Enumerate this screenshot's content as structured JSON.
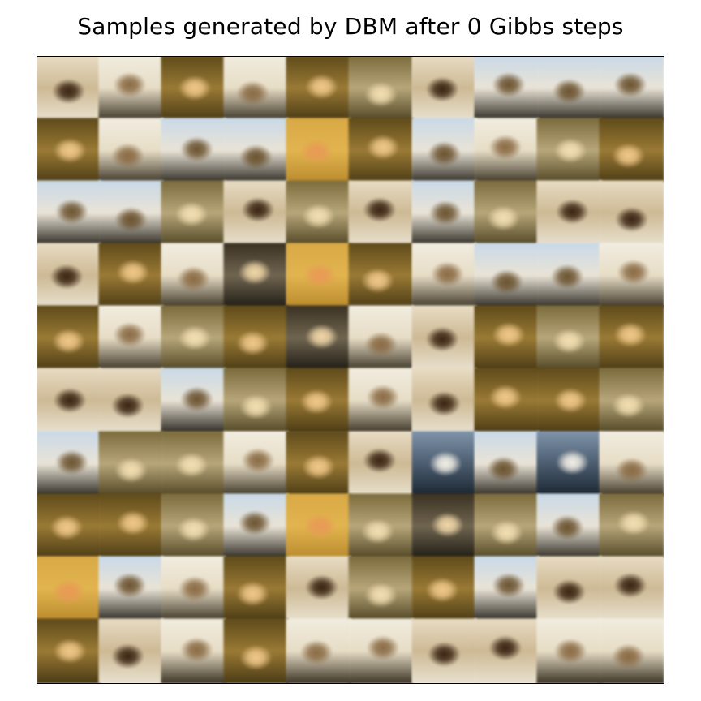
{
  "title": "Samples generated by DBM after 0 Gibbs steps",
  "grid": {
    "rows": 10,
    "cols": 10
  },
  "palettes": {
    "sky": {
      "top": "#c9d9e8",
      "mid": "#e9e3d6",
      "bottom": "#2d2a22",
      "blob": "#6b5330"
    },
    "cream": {
      "top": "#f1ecdf",
      "mid": "#e7ddc6",
      "bottom": "#3c3425",
      "blob": "#8a6b45"
    },
    "amber": {
      "top": "#5e4a1a",
      "mid": "#9a7a35",
      "bottom": "#4a3a14",
      "blob": "#f0c88a"
    },
    "gold": {
      "top": "#d8a944",
      "mid": "#e2b44f",
      "bottom": "#b98a2c",
      "blob": "#e89a55"
    },
    "dark": {
      "top": "#3b3122",
      "mid": "#6f6550",
      "bottom": "#1f1b14",
      "blob": "#f1d7a8"
    },
    "brown": {
      "top": "#e8dcc4",
      "mid": "#cdb994",
      "bottom": "#e9e1cf",
      "blob": "#3a2412"
    },
    "slate": {
      "top": "#7f93aa",
      "mid": "#4c5d70",
      "bottom": "#1a2530",
      "blob": "#f3f0e7"
    },
    "olive": {
      "top": "#7b6b3c",
      "mid": "#b7a67a",
      "bottom": "#514624",
      "blob": "#f2dfb2"
    }
  },
  "tiles": [
    "brown",
    "cream",
    "amber",
    "cream",
    "amber",
    "olive",
    "brown",
    "sky",
    "sky",
    "sky",
    "amber",
    "cream",
    "sky",
    "sky",
    "gold",
    "amber",
    "sky",
    "cream",
    "olive",
    "amber",
    "sky",
    "sky",
    "olive",
    "brown",
    "olive",
    "brown",
    "sky",
    "olive",
    "brown",
    "brown",
    "brown",
    "amber",
    "cream",
    "dark",
    "gold",
    "amber",
    "cream",
    "sky",
    "sky",
    "cream",
    "amber",
    "cream",
    "olive",
    "amber",
    "dark",
    "cream",
    "brown",
    "amber",
    "olive",
    "amber",
    "brown",
    "brown",
    "sky",
    "olive",
    "amber",
    "cream",
    "brown",
    "amber",
    "amber",
    "olive",
    "sky",
    "olive",
    "olive",
    "cream",
    "amber",
    "brown",
    "slate",
    "sky",
    "slate",
    "cream",
    "amber",
    "amber",
    "olive",
    "sky",
    "gold",
    "olive",
    "dark",
    "olive",
    "sky",
    "olive",
    "gold",
    "sky",
    "cream",
    "amber",
    "brown",
    "olive",
    "amber",
    "sky",
    "brown",
    "brown",
    "amber",
    "brown",
    "cream",
    "amber",
    "cream",
    "cream",
    "brown",
    "brown",
    "cream",
    "cream"
  ]
}
